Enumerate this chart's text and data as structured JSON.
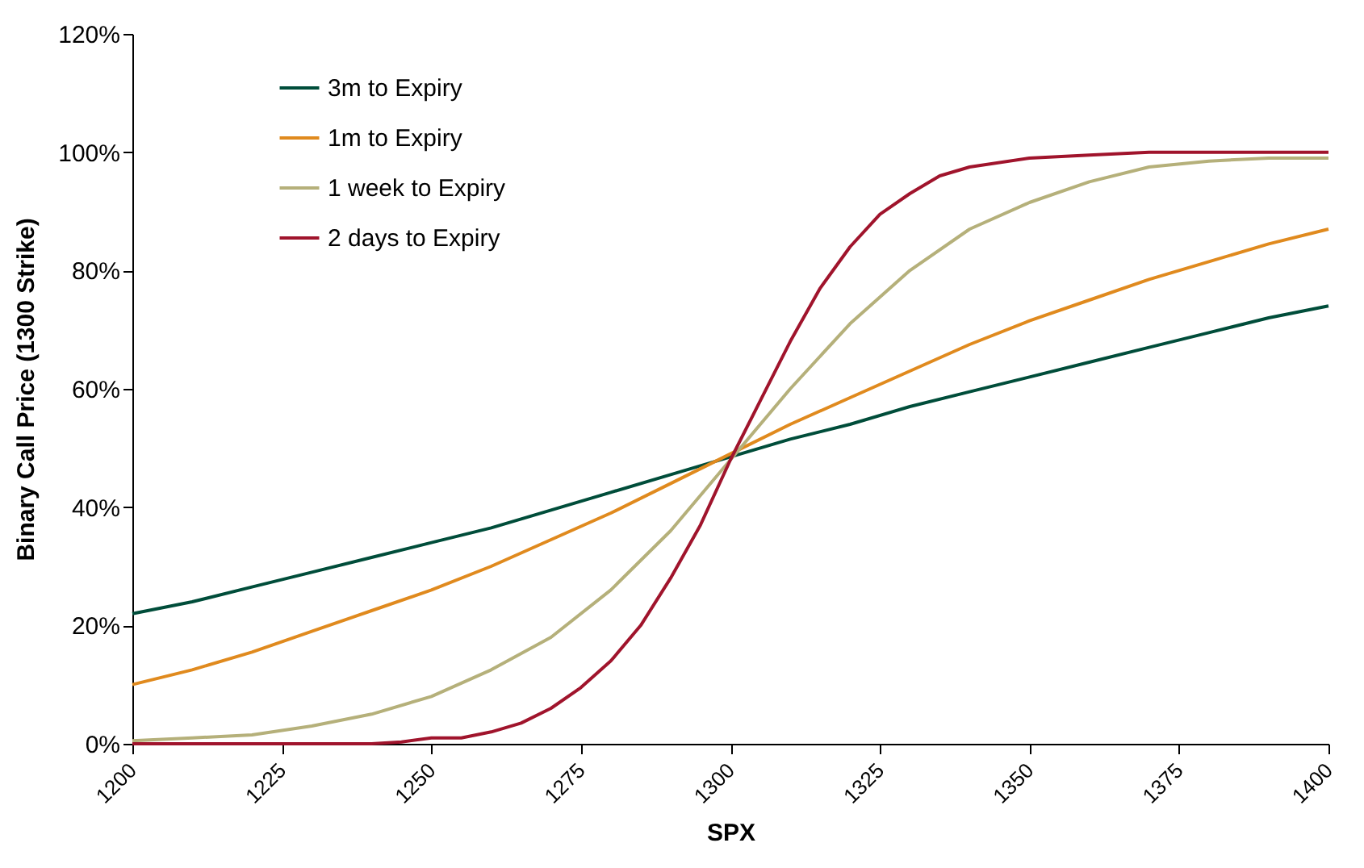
{
  "chart_data": {
    "type": "line",
    "xlabel": "SPX",
    "ylabel": "Binary Call Price (1300 Strike)",
    "xlim": [
      1200,
      1400
    ],
    "xticks": [
      1200,
      1225,
      1250,
      1275,
      1300,
      1325,
      1350,
      1375,
      1400
    ],
    "ylim": [
      0,
      120
    ],
    "yticks": [
      {
        "value": 0,
        "label": "0%"
      },
      {
        "value": 20,
        "label": "20%"
      },
      {
        "value": 40,
        "label": "40%"
      },
      {
        "value": 60,
        "label": "60%"
      },
      {
        "value": 80,
        "label": "80%"
      },
      {
        "value": 100,
        "label": "100%"
      },
      {
        "value": 120,
        "label": "120%"
      }
    ],
    "grid": false,
    "legend": "top left",
    "marker": "none",
    "line_style": "solid",
    "x": [
      1200,
      1210,
      1220,
      1230,
      1240,
      1250,
      1260,
      1270,
      1280,
      1290,
      1300,
      1310,
      1320,
      1330,
      1340,
      1350,
      1360,
      1370,
      1380,
      1390,
      1400
    ],
    "series": [
      {
        "name": "3m to Expiry",
        "color": "#004d3a",
        "values": [
          22,
          24,
          26.5,
          29,
          31.5,
          34,
          36.5,
          39.5,
          42.5,
          45.5,
          48.5,
          51.5,
          54,
          57,
          59.5,
          62,
          64.5,
          67,
          69.5,
          72,
          74
        ]
      },
      {
        "name": "1m to Expiry",
        "color": "#e08a1e",
        "values": [
          10,
          12.5,
          15.5,
          19,
          22.5,
          26,
          30,
          34.5,
          39,
          44,
          49,
          54,
          58.5,
          63,
          67.5,
          71.5,
          75,
          78.5,
          81.5,
          84.5,
          87
        ]
      },
      {
        "name": "1 week to Expiry",
        "color": "#b5b07a",
        "values": [
          0.5,
          1,
          1.5,
          3,
          5,
          8,
          12.5,
          18,
          26,
          36,
          48,
          60,
          71,
          80,
          87,
          91.5,
          95,
          97.5,
          98.5,
          99,
          99
        ]
      },
      {
        "name": "2 days to Expiry",
        "color": "#a0142c",
        "x": [
          1200,
          1230,
          1240,
          1245,
          1250,
          1255,
          1260,
          1265,
          1270,
          1275,
          1280,
          1285,
          1290,
          1295,
          1300,
          1305,
          1310,
          1315,
          1320,
          1325,
          1330,
          1335,
          1340,
          1350,
          1360,
          1370,
          1400
        ],
        "values": [
          0,
          0,
          0,
          0.3,
          1,
          1,
          2,
          3.5,
          6,
          9.5,
          14,
          20,
          28,
          37,
          48,
          58,
          68,
          77,
          84,
          89.5,
          93,
          96,
          97.5,
          99,
          99.5,
          100,
          100
        ]
      }
    ]
  }
}
